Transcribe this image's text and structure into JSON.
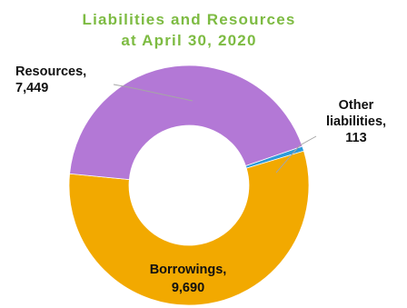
{
  "chart_data": {
    "type": "pie",
    "title": "Liabilities and Resources at April 30, 2020",
    "title_lines": [
      "Liabilities and Resources",
      "at April 30, 2020"
    ],
    "donut": true,
    "slices": [
      {
        "name": "Other liabilities",
        "value": 113,
        "color": "#2e9ad9",
        "label_lines": [
          "Other",
          "liabilities,",
          "113"
        ]
      },
      {
        "name": "Borrowings",
        "value": 9690,
        "color": "#f2a900",
        "label_lines": [
          "Borrowings,",
          "9,690"
        ]
      },
      {
        "name": "Resources",
        "value": 7449,
        "color": "#b378d6",
        "label_lines": [
          "Resources,",
          "7,449"
        ]
      }
    ],
    "start_angle_deg": 71,
    "direction": "clockwise"
  },
  "colors": {
    "title": "#7dbb42",
    "label_text": "#111111",
    "leader_line": "#a6a6a6"
  }
}
